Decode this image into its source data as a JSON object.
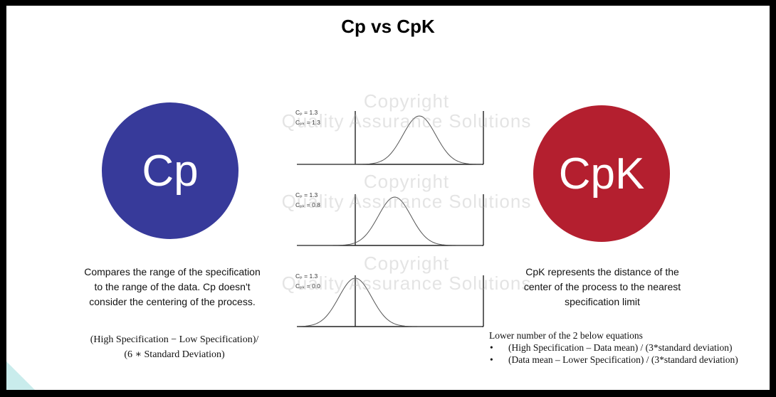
{
  "title": "Cp vs CpK",
  "cp": {
    "circle_label": "Cp",
    "circle_color": "#373a9a",
    "description_lines": [
      "Compares the range of the specification",
      "to the range of the data. Cp doesn't",
      "consider the centering of the process."
    ],
    "formula_lines": [
      "(High Specification  − Low Specification)/",
      "(6 ∗ Standard Deviation)"
    ]
  },
  "cpk": {
    "circle_label": "CpK",
    "circle_color": "#b41f2f",
    "description_lines": [
      "CpK represents the distance of the",
      "center of the process to the nearest",
      "specification limit"
    ],
    "equations_heading": "Lower number of the 2 below equations",
    "equations": [
      "(High Specification – Data mean) / (3*standard deviation)",
      "(Data mean – Lower Specification) / (3*standard deviation)"
    ]
  },
  "distributions": [
    {
      "cp_label": "Cₚ = 1.3",
      "cpk_label": "Cₚₖ = 1.3",
      "cp": 1.3,
      "cpk": 1.3
    },
    {
      "cp_label": "Cₚ = 1.3",
      "cpk_label": "Cₚₖ = 0.8",
      "cp": 1.3,
      "cpk": 0.8
    },
    {
      "cp_label": "Cₚ = 1.3",
      "cpk_label": "Cₚₖ = 0.0",
      "cp": 1.3,
      "cpk": 0.0
    }
  ],
  "watermark_lines": [
    "Copyright",
    "Quality Assurance Solutions"
  ]
}
